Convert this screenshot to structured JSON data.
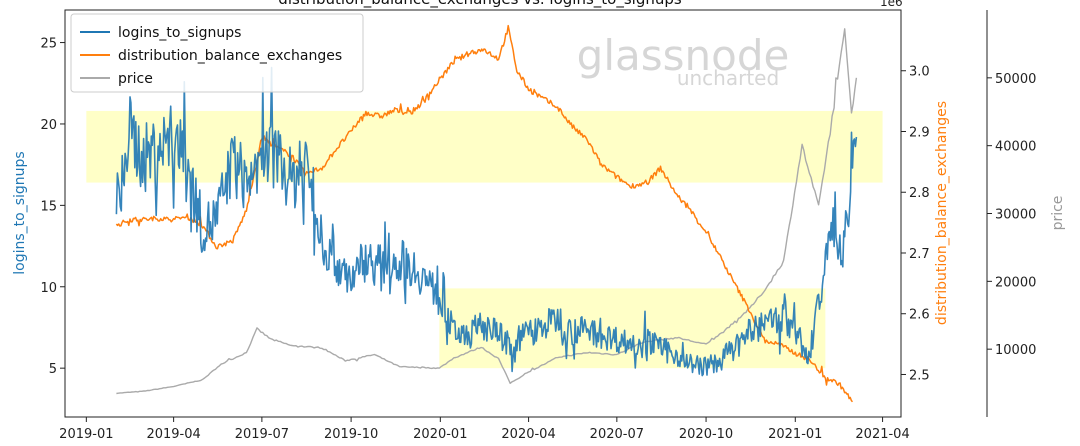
{
  "watermark": {
    "main": "glassnode",
    "sub": "uncharted"
  },
  "chart_data": {
    "type": "line",
    "title": "distribution_balance_exchanges vs. logins_to_signups",
    "xlabel": "",
    "x_ticks": [
      "2019-01",
      "2019-04",
      "2019-07",
      "2019-10",
      "2020-01",
      "2020-04",
      "2020-07",
      "2020-10",
      "2021-01",
      "2021-04"
    ],
    "axes": {
      "left": {
        "label": "logins_to_signups",
        "ticks": [
          "5",
          "10",
          "15",
          "20",
          "25"
        ],
        "ylim": [
          2.0,
          27.0
        ],
        "color": "#1f77b4"
      },
      "mid": {
        "label": "distribution_balance_exchanges",
        "offset_text": "1e6",
        "ticks": [
          "2.5",
          "2.6",
          "2.7",
          "2.8",
          "2.9",
          "3.0"
        ],
        "ylim": [
          2.43,
          3.1
        ],
        "color": "#ff7f0e"
      },
      "right": {
        "label": "price",
        "ticks": [
          "10000",
          "20000",
          "30000",
          "40000",
          "50000"
        ],
        "ylim": [
          0,
          60000
        ],
        "color": "#999999"
      }
    },
    "highlight_bands": [
      {
        "axis": "left",
        "y0": 16.4,
        "y1": 20.8,
        "x0": "2019-01-01",
        "x1": "2021-04-01"
      },
      {
        "axis": "left",
        "y0": 5.0,
        "y1": 9.9,
        "x0": "2019-12-31",
        "x1": "2021-02-01"
      }
    ],
    "series": [
      {
        "name": "logins_to_signups",
        "axis": "left",
        "color": "#1f77b4",
        "points": [
          [
            "2019-02-01",
            14.2
          ],
          [
            "2019-02-15",
            19.5
          ],
          [
            "2019-03-01",
            17.8
          ],
          [
            "2019-03-15",
            18.6
          ],
          [
            "2019-04-01",
            19.0
          ],
          [
            "2019-04-15",
            17.5
          ],
          [
            "2019-05-01",
            13.5
          ],
          [
            "2019-05-15",
            14.2
          ],
          [
            "2019-06-01",
            17.6
          ],
          [
            "2019-06-15",
            16.5
          ],
          [
            "2019-07-01",
            17.8
          ],
          [
            "2019-07-15",
            18.2
          ],
          [
            "2019-08-01",
            16.4
          ],
          [
            "2019-08-15",
            17.8
          ],
          [
            "2019-09-01",
            12.9
          ],
          [
            "2019-09-15",
            11.5
          ],
          [
            "2019-10-01",
            10.6
          ],
          [
            "2019-10-15",
            11.7
          ],
          [
            "2019-11-01",
            11.3
          ],
          [
            "2019-11-15",
            11.6
          ],
          [
            "2019-12-01",
            11.4
          ],
          [
            "2019-12-15",
            10.6
          ],
          [
            "2019-12-31",
            9.2
          ],
          [
            "2020-01-15",
            7.2
          ],
          [
            "2020-02-01",
            7.3
          ],
          [
            "2020-02-15",
            7.6
          ],
          [
            "2020-03-01",
            7.1
          ],
          [
            "2020-03-15",
            6.3
          ],
          [
            "2020-04-01",
            7.3
          ],
          [
            "2020-04-15",
            7.5
          ],
          [
            "2020-05-01",
            8.1
          ],
          [
            "2020-05-15",
            7.2
          ],
          [
            "2020-06-01",
            7.4
          ],
          [
            "2020-06-15",
            7.0
          ],
          [
            "2020-07-01",
            6.8
          ],
          [
            "2020-07-15",
            6.5
          ],
          [
            "2020-08-01",
            6.7
          ],
          [
            "2020-08-15",
            6.2
          ],
          [
            "2020-09-01",
            5.8
          ],
          [
            "2020-09-15",
            5.3
          ],
          [
            "2020-10-01",
            5.1
          ],
          [
            "2020-10-15",
            5.4
          ],
          [
            "2020-11-01",
            6.3
          ],
          [
            "2020-11-15",
            7.2
          ],
          [
            "2020-12-01",
            7.6
          ],
          [
            "2020-12-15",
            8.2
          ],
          [
            "2021-01-01",
            7.4
          ],
          [
            "2021-01-15",
            5.5
          ],
          [
            "2021-02-01",
            11.5
          ],
          [
            "2021-02-10",
            13.8
          ],
          [
            "2021-02-20",
            12.2
          ],
          [
            "2021-03-01",
            17.5
          ],
          [
            "2021-03-05",
            19.2
          ]
        ]
      },
      {
        "name": "distribution_balance_exchanges",
        "axis": "mid",
        "color": "#ff7f0e",
        "points": [
          [
            "2019-02-01",
            2.745
          ],
          [
            "2019-02-15",
            2.755
          ],
          [
            "2019-03-01",
            2.755
          ],
          [
            "2019-03-15",
            2.757
          ],
          [
            "2019-04-01",
            2.755
          ],
          [
            "2019-04-15",
            2.76
          ],
          [
            "2019-05-01",
            2.745
          ],
          [
            "2019-05-15",
            2.71
          ],
          [
            "2019-06-01",
            2.72
          ],
          [
            "2019-06-15",
            2.77
          ],
          [
            "2019-07-01",
            2.89
          ],
          [
            "2019-07-15",
            2.875
          ],
          [
            "2019-08-01",
            2.86
          ],
          [
            "2019-08-15",
            2.83
          ],
          [
            "2019-09-01",
            2.84
          ],
          [
            "2019-09-15",
            2.87
          ],
          [
            "2019-10-01",
            2.9
          ],
          [
            "2019-10-15",
            2.93
          ],
          [
            "2019-11-01",
            2.925
          ],
          [
            "2019-11-15",
            2.935
          ],
          [
            "2019-12-01",
            2.93
          ],
          [
            "2019-12-15",
            2.95
          ],
          [
            "2019-12-31",
            2.985
          ],
          [
            "2020-01-15",
            3.015
          ],
          [
            "2020-02-01",
            3.03
          ],
          [
            "2020-02-15",
            3.035
          ],
          [
            "2020-03-01",
            3.02
          ],
          [
            "2020-03-11",
            3.07
          ],
          [
            "2020-03-20",
            3.0
          ],
          [
            "2020-04-01",
            2.97
          ],
          [
            "2020-04-15",
            2.955
          ],
          [
            "2020-05-01",
            2.94
          ],
          [
            "2020-05-15",
            2.91
          ],
          [
            "2020-06-01",
            2.885
          ],
          [
            "2020-06-15",
            2.845
          ],
          [
            "2020-07-01",
            2.825
          ],
          [
            "2020-07-15",
            2.81
          ],
          [
            "2020-08-01",
            2.815
          ],
          [
            "2020-08-15",
            2.84
          ],
          [
            "2020-09-01",
            2.795
          ],
          [
            "2020-09-15",
            2.77
          ],
          [
            "2020-10-01",
            2.735
          ],
          [
            "2020-10-15",
            2.695
          ],
          [
            "2020-11-01",
            2.645
          ],
          [
            "2020-11-15",
            2.605
          ],
          [
            "2020-12-01",
            2.555
          ],
          [
            "2020-12-15",
            2.55
          ],
          [
            "2021-01-01",
            2.535
          ],
          [
            "2021-01-15",
            2.525
          ],
          [
            "2021-02-01",
            2.495
          ],
          [
            "2021-02-15",
            2.485
          ],
          [
            "2021-03-01",
            2.455
          ]
        ]
      },
      {
        "name": "price",
        "axis": "right",
        "color": "#aaaaaa",
        "points": [
          [
            "2019-02-01",
            3500
          ],
          [
            "2019-03-01",
            3800
          ],
          [
            "2019-04-01",
            4500
          ],
          [
            "2019-05-01",
            5500
          ],
          [
            "2019-05-20",
            7800
          ],
          [
            "2019-06-15",
            9500
          ],
          [
            "2019-06-26",
            13000
          ],
          [
            "2019-07-10",
            11500
          ],
          [
            "2019-08-01",
            10500
          ],
          [
            "2019-09-01",
            10200
          ],
          [
            "2019-09-25",
            8300
          ],
          [
            "2019-10-25",
            9200
          ],
          [
            "2019-11-20",
            7400
          ],
          [
            "2019-12-31",
            7200
          ],
          [
            "2020-01-15",
            8700
          ],
          [
            "2020-02-12",
            10300
          ],
          [
            "2020-03-01",
            8600
          ],
          [
            "2020-03-13",
            5000
          ],
          [
            "2020-04-01",
            6600
          ],
          [
            "2020-05-01",
            8800
          ],
          [
            "2020-06-01",
            9500
          ],
          [
            "2020-07-01",
            9200
          ],
          [
            "2020-07-27",
            11000
          ],
          [
            "2020-09-01",
            11700
          ],
          [
            "2020-10-01",
            10700
          ],
          [
            "2020-10-21",
            12800
          ],
          [
            "2020-11-15",
            16000
          ],
          [
            "2020-12-01",
            18800
          ],
          [
            "2020-12-20",
            23000
          ],
          [
            "2021-01-08",
            40000
          ],
          [
            "2021-01-25",
            31000
          ],
          [
            "2021-02-10",
            46000
          ],
          [
            "2021-02-21",
            57000
          ],
          [
            "2021-02-28",
            45000
          ],
          [
            "2021-03-05",
            50000
          ]
        ]
      }
    ]
  }
}
